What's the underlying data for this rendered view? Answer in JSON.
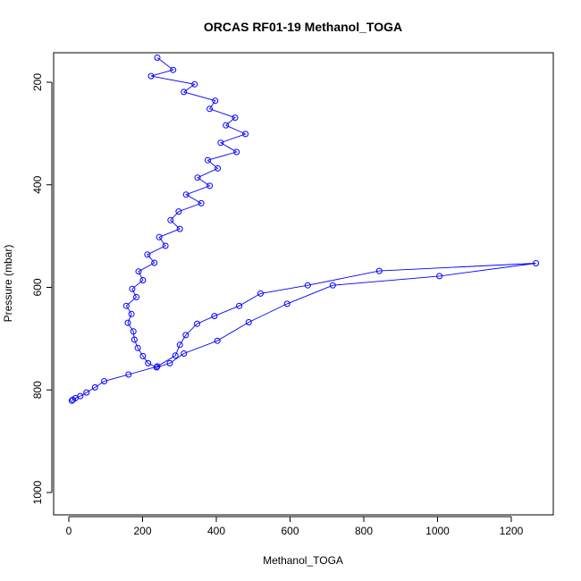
{
  "chart_data": {
    "type": "line",
    "title": "ORCAS RF01-19 Methanol_TOGA",
    "xlabel": "Methanol_TOGA",
    "ylabel": "Pressure (mbar)",
    "xlim": [
      0,
      1320
    ],
    "ylim": [
      1040,
      150
    ],
    "y_reversed": true,
    "x_ticks": [
      0,
      200,
      400,
      600,
      800,
      1000,
      1200
    ],
    "y_ticks": [
      200,
      400,
      600,
      800,
      1000
    ],
    "grid": false,
    "markers": "open-circle",
    "color": "#0000ff",
    "series": [
      {
        "x": [
          240,
          283,
          223,
          341,
          312,
          397,
          382,
          451,
          426,
          479,
          412,
          455,
          377,
          404,
          349,
          382,
          318,
          359,
          298,
          276,
          301,
          245,
          262,
          213,
          232,
          189,
          201,
          172,
          183,
          156,
          170,
          160,
          175,
          178,
          187,
          201,
          215,
          238,
          274,
          312,
          403,
          488,
          592,
          716,
          1005,
          1267,
          842,
          648,
          520,
          462,
          395,
          348,
          317,
          301,
          289,
          240,
          162,
          96,
          71,
          48,
          31,
          18,
          11,
          8
        ],
        "y": [
          152,
          176,
          188,
          204,
          219,
          236,
          252,
          269,
          284,
          301,
          318,
          336,
          352,
          368,
          386,
          402,
          419,
          436,
          452,
          469,
          486,
          502,
          519,
          536,
          552,
          569,
          586,
          603,
          619,
          636,
          652,
          669,
          686,
          702,
          718,
          734,
          748,
          756,
          748,
          729,
          704,
          668,
          632,
          596,
          578,
          553,
          568,
          596,
          612,
          636,
          656,
          671,
          693,
          712,
          733,
          754,
          770,
          783,
          795,
          805,
          812,
          816,
          819,
          821
        ]
      }
    ]
  }
}
